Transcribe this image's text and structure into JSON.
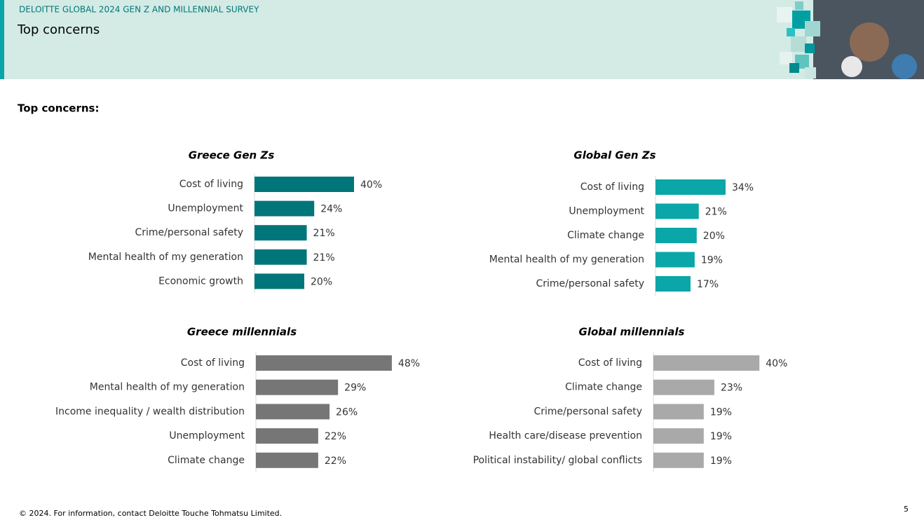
{
  "header": {
    "survey": "DELOITTE GLOBAL 2024 GEN Z AND MILLENNIAL SURVEY",
    "title": "Top concerns"
  },
  "section_label": "Top concerns:",
  "footer": "© 2024. For information, contact Deloitte Touche Tohmatsu Limited.",
  "page_number": "5",
  "chart_data": [
    {
      "type": "bar",
      "title": "Greece Gen Zs",
      "color": "#00767a",
      "categories": [
        "Cost of living",
        "Unemployment",
        "Crime/personal safety",
        "Mental health of my generation",
        "Economic growth"
      ],
      "values": [
        40,
        24,
        21,
        21,
        20
      ],
      "value_labels": [
        "40%",
        "24%",
        "21%",
        "21%",
        "20%"
      ]
    },
    {
      "type": "bar",
      "title": "Global Gen Zs",
      "color": "#0ba6a8",
      "categories": [
        "Cost of living",
        "Unemployment",
        "Climate change",
        "Mental health of my generation",
        "Crime/personal safety"
      ],
      "values": [
        34,
        21,
        20,
        19,
        17
      ],
      "value_labels": [
        "34%",
        "21%",
        "20%",
        "19%",
        "17%"
      ]
    },
    {
      "type": "bar",
      "title": "Greece millennials",
      "color": "#767676",
      "categories": [
        "Cost of living",
        "Mental health of my generation",
        "Income inequality / wealth distribution",
        "Unemployment",
        "Climate change"
      ],
      "values": [
        48,
        29,
        26,
        22,
        22
      ],
      "value_labels": [
        "48%",
        "29%",
        "26%",
        "22%",
        "22%"
      ]
    },
    {
      "type": "bar",
      "title": "Global millennials",
      "color": "#a9a9a9",
      "categories": [
        "Cost of living",
        "Climate change",
        "Crime/personal safety",
        "Health care/disease prevention",
        "Political instability/ global conflicts"
      ],
      "values": [
        40,
        23,
        19,
        19,
        19
      ],
      "value_labels": [
        "40%",
        "23%",
        "19%",
        "19%",
        "19%"
      ]
    }
  ]
}
